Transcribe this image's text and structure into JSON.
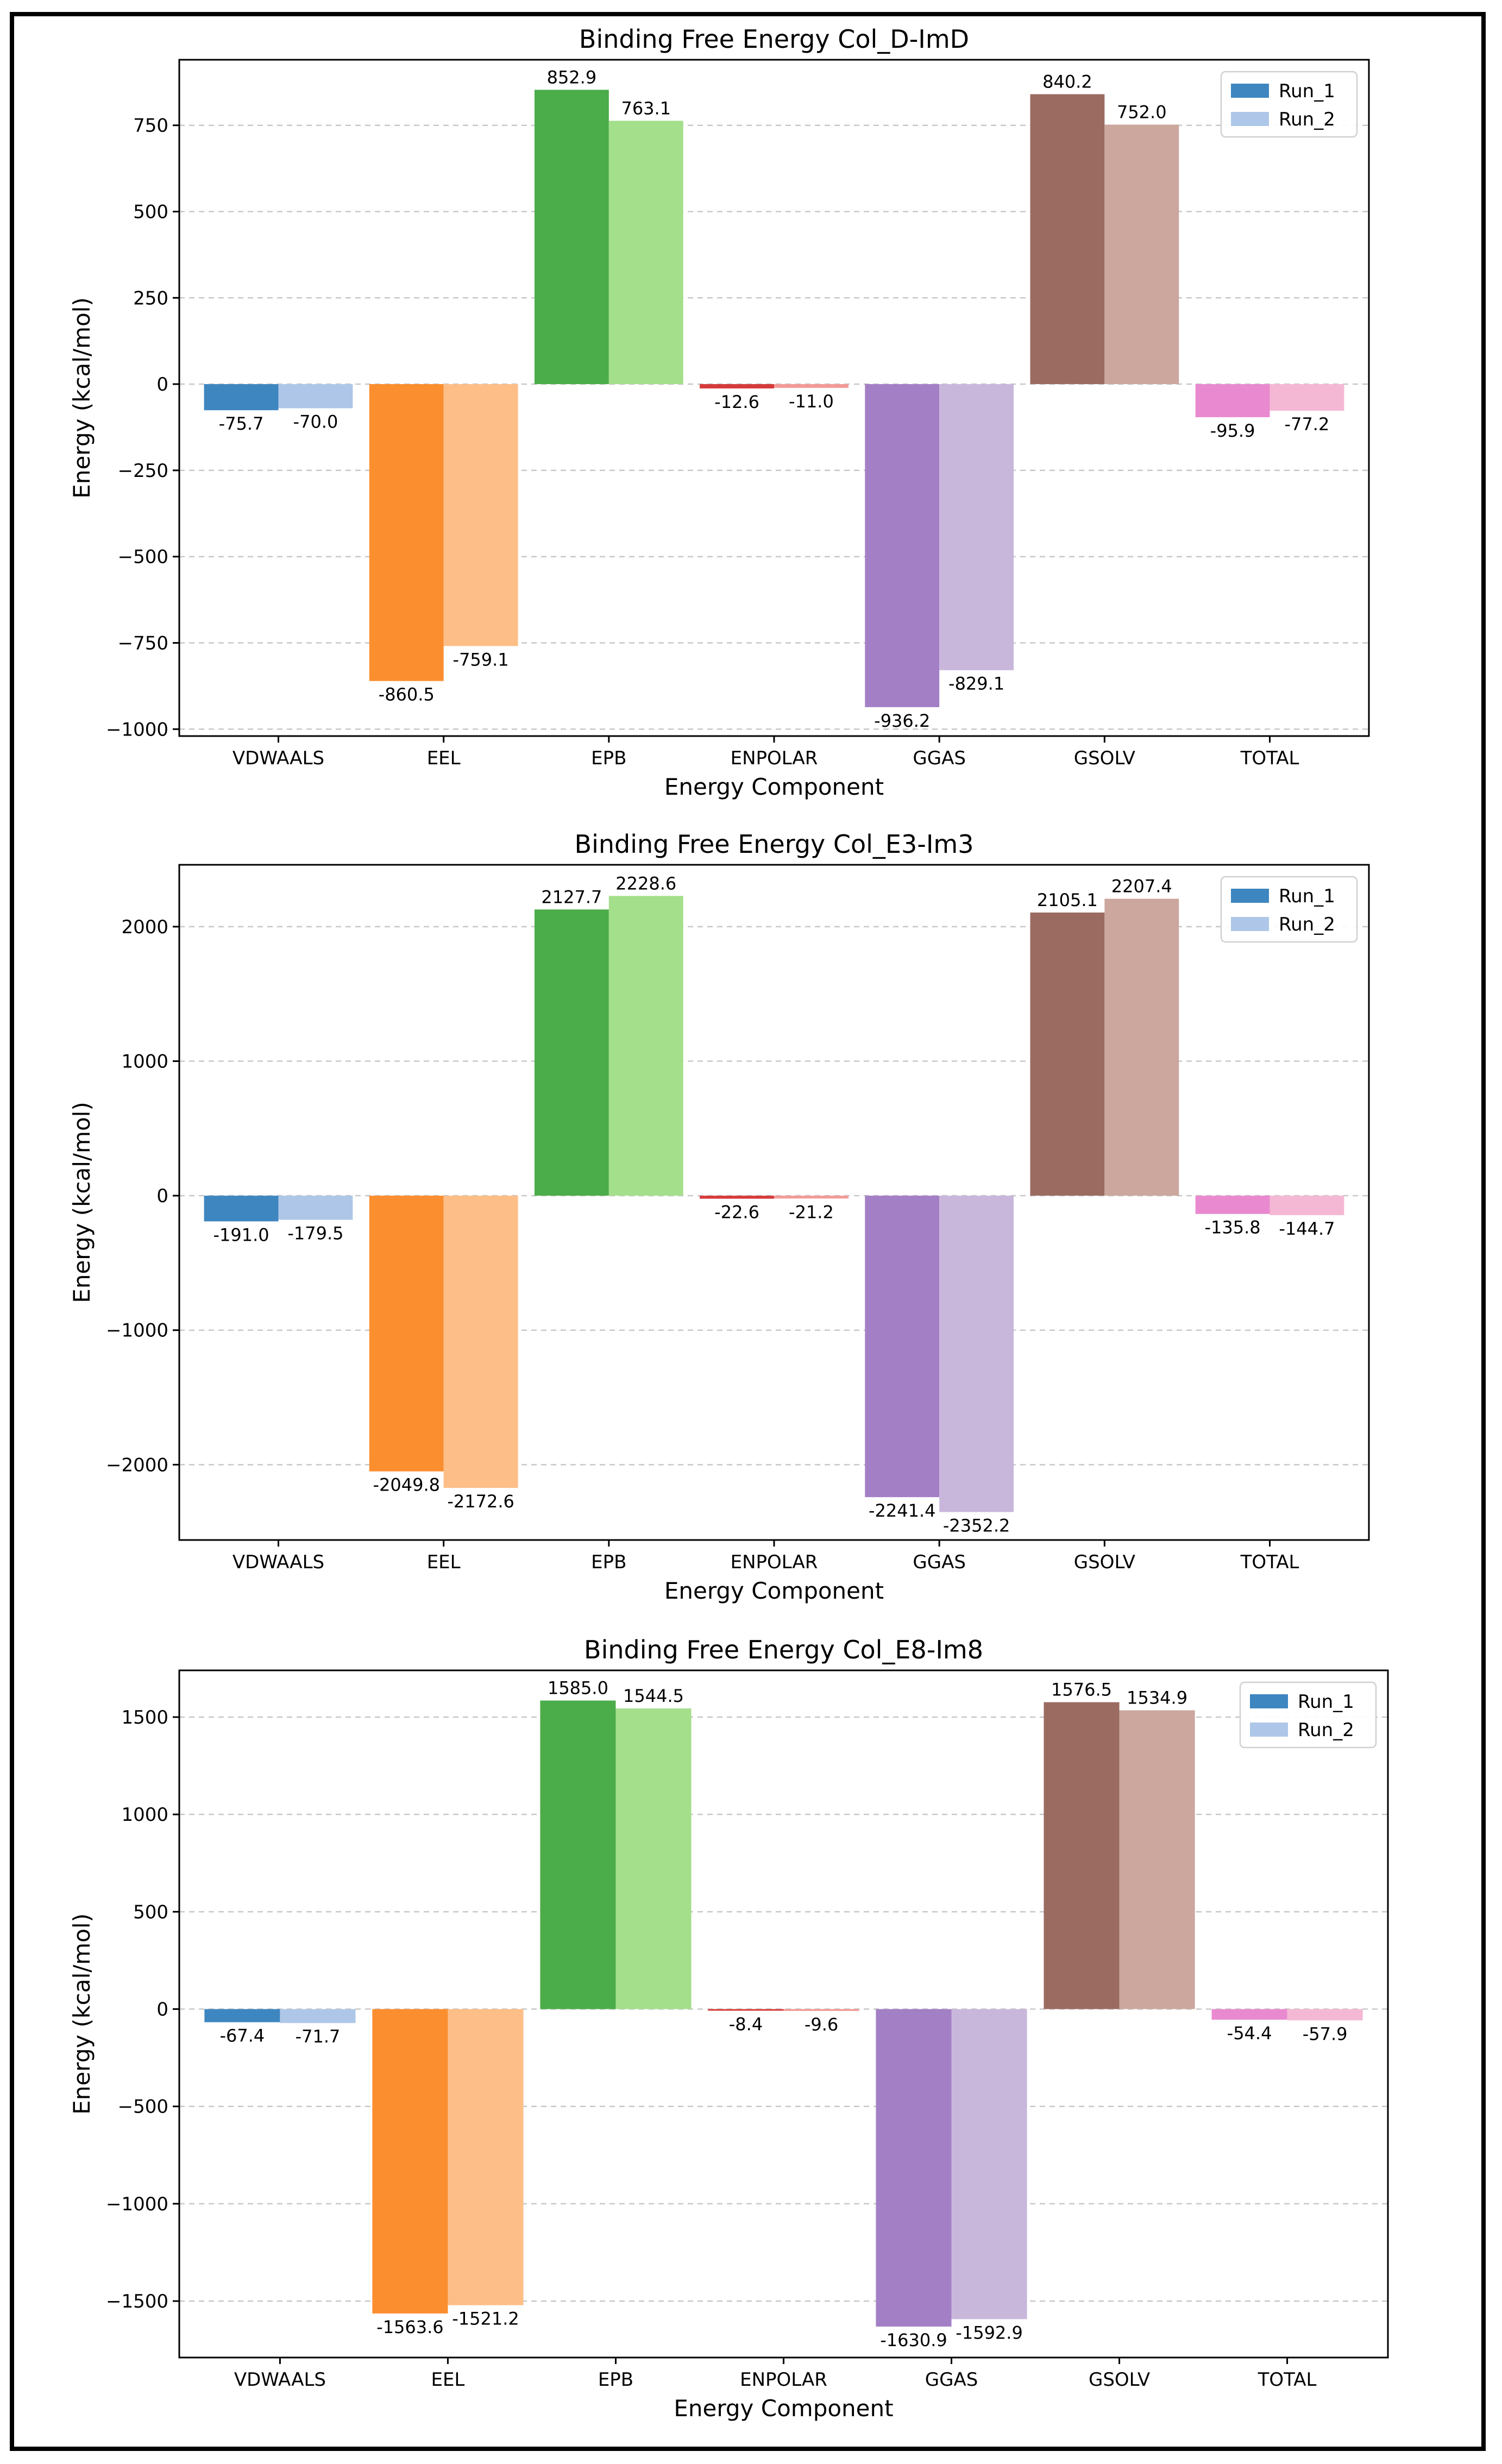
{
  "chart_data": [
    {
      "type": "bar",
      "title": "Binding Free Energy Col_D-ImD",
      "xlabel": "Energy Component",
      "ylabel": "Energy (kcal/mol)",
      "categories": [
        "VDWAALS",
        "EEL",
        "EPB",
        "ENPOLAR",
        "GGAS",
        "GSOLV",
        "TOTAL"
      ],
      "series": [
        {
          "name": "Run_1",
          "values": [
            -75.7,
            -860.5,
            852.9,
            -12.6,
            -936.2,
            840.2,
            -95.9
          ]
        },
        {
          "name": "Run_2",
          "values": [
            -70.0,
            -759.1,
            763.1,
            -11.0,
            -829.1,
            752.0,
            -77.2
          ]
        }
      ],
      "value_labels": [
        [
          "-75.7",
          "-860.5",
          "852.9",
          "-12.6",
          "-936.2",
          "840.2",
          "-95.9"
        ],
        [
          "-70.0",
          "-759.1",
          "763.1",
          "-11.0",
          "-829.1",
          "752.0",
          "-77.2"
        ]
      ],
      "ylim": [
        -1020,
        940
      ],
      "yticks": [
        -1000,
        -750,
        -500,
        -250,
        0,
        250,
        500,
        750
      ],
      "ytick_labels": [
        "−1000",
        "−750",
        "−500",
        "−250",
        "0",
        "250",
        "500",
        "750"
      ],
      "grid": true,
      "legend": "top-right"
    },
    {
      "type": "bar",
      "title": "Binding Free Energy Col_E3-Im3",
      "xlabel": "Energy Component",
      "ylabel": "Energy (kcal/mol)",
      "categories": [
        "VDWAALS",
        "EEL",
        "EPB",
        "ENPOLAR",
        "GGAS",
        "GSOLV",
        "TOTAL"
      ],
      "series": [
        {
          "name": "Run_1",
          "values": [
            -191.0,
            -2049.8,
            2127.7,
            -22.6,
            -2241.4,
            2105.1,
            -135.8
          ]
        },
        {
          "name": "Run_2",
          "values": [
            -179.5,
            -2172.6,
            2228.6,
            -21.2,
            -2352.2,
            2207.4,
            -144.7
          ]
        }
      ],
      "value_labels": [
        [
          "-191.0",
          "-2049.8",
          "2127.7",
          "-22.6",
          "-2241.4",
          "2105.1",
          "-135.8"
        ],
        [
          "-179.5",
          "-2172.6",
          "2228.6",
          "-21.2",
          "-2352.2",
          "2207.4",
          "-144.7"
        ]
      ],
      "ylim": [
        -2560,
        2460
      ],
      "yticks": [
        -2000,
        -1000,
        0,
        1000,
        2000
      ],
      "ytick_labels": [
        "−2000",
        "−1000",
        "0",
        "1000",
        "2000"
      ],
      "grid": true,
      "legend": "top-right"
    },
    {
      "type": "bar",
      "title": "Binding Free Energy Col_E8-Im8",
      "xlabel": "Energy Component",
      "ylabel": "Energy (kcal/mol)",
      "categories": [
        "VDWAALS",
        "EEL",
        "EPB",
        "ENPOLAR",
        "GGAS",
        "GSOLV",
        "TOTAL"
      ],
      "series": [
        {
          "name": "Run_1",
          "values": [
            -67.4,
            -1563.6,
            1585.0,
            -8.4,
            -1630.9,
            1576.5,
            -54.4
          ]
        },
        {
          "name": "Run_2",
          "values": [
            -71.7,
            -1521.2,
            1544.5,
            -9.6,
            -1592.9,
            1534.9,
            -57.9
          ]
        }
      ],
      "value_labels": [
        [
          "-67.4",
          "-1563.6",
          "1585.0",
          "-8.4",
          "-1630.9",
          "1576.5",
          "-54.4"
        ],
        [
          "-71.7",
          "-1521.2",
          "1544.5",
          "-9.6",
          "-1592.9",
          "1534.9",
          "-57.9"
        ]
      ],
      "ylim": [
        -1790,
        1740
      ],
      "yticks": [
        -1500,
        -1000,
        -500,
        0,
        500,
        1000,
        1500
      ],
      "ytick_labels": [
        "−1500",
        "−1000",
        "−500",
        "0",
        "500",
        "1000",
        "1500"
      ],
      "grid": true,
      "legend": "top-right"
    }
  ],
  "colors": {
    "run1": [
      "#3e86c0",
      "#fb8e2e",
      "#4bac4a",
      "#d63b3b",
      "#a37fc6",
      "#9b6b62",
      "#e98ad0"
    ],
    "run2": [
      "#aec7e8",
      "#fdbe87",
      "#a4df8c",
      "#f29b98",
      "#c9b7db",
      "#cba79e",
      "#f5b8d4"
    ],
    "legend_run1": "#3e86c0",
    "legend_run2": "#aec7e8",
    "grid": "#c8c8c8"
  }
}
